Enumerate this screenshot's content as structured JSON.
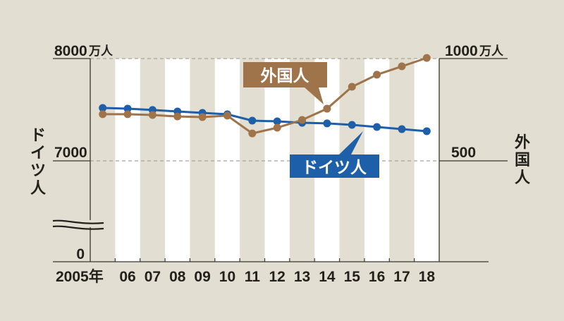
{
  "chart_data": {
    "type": "line",
    "title": "",
    "xlabel": "",
    "x_unit": "年",
    "categories": [
      "2005年",
      "06",
      "07",
      "08",
      "09",
      "10",
      "11",
      "12",
      "13",
      "14",
      "15",
      "16",
      "17",
      "18"
    ],
    "years": [
      2005,
      2006,
      2007,
      2008,
      2009,
      2010,
      2011,
      2012,
      2013,
      2014,
      2015,
      2016,
      2017,
      2018
    ],
    "left_axis": {
      "title": "ドイツ人",
      "unit": "万人",
      "ticks": [
        {
          "value": 8000,
          "label": "8000"
        },
        {
          "value": 7000,
          "label": "7000"
        },
        {
          "value": 0,
          "label": "0"
        }
      ],
      "top_label_unit": "万人",
      "axis_break": true,
      "ylim": [
        7000,
        8000
      ]
    },
    "right_axis": {
      "title": "外国人",
      "unit": "万人",
      "ticks": [
        {
          "value": 1000,
          "label": "1000"
        },
        {
          "value": 500,
          "label": "500"
        }
      ],
      "ylim": [
        500,
        1000
      ]
    },
    "grid": "dashed horizontal at top and 7000/500",
    "series": [
      {
        "name": "ドイツ人",
        "axis": "left",
        "color": "#1d5fa8",
        "values": [
          7517,
          7510,
          7497,
          7483,
          7469,
          7455,
          7393,
          7386,
          7372,
          7366,
          7352,
          7331,
          7310,
          7290
        ]
      },
      {
        "name": "外国人",
        "axis": "right",
        "color": "#a0744a",
        "values": [
          728,
          728,
          724,
          717,
          714,
          721,
          634,
          662,
          700,
          755,
          862,
          921,
          962,
          1003
        ]
      }
    ],
    "legend": "callout labels on lines"
  },
  "labels": {
    "left_top": "8000",
    "left_top_unit": "万人",
    "left_mid": "7000",
    "left_zero": "0",
    "right_top": "1000",
    "right_top_unit": "万人",
    "right_mid": "500",
    "left_title_chars": [
      "ド",
      "イ",
      "ツ",
      "人"
    ],
    "right_title_chars": [
      "外",
      "国",
      "人"
    ],
    "callout_foreign": "外国人",
    "callout_german": "ドイツ人"
  },
  "colors": {
    "background": "#e2dfd2",
    "stripe": "#ffffff",
    "german": "#1d5fa8",
    "foreign": "#a0744a",
    "axis": "#3a3630"
  }
}
